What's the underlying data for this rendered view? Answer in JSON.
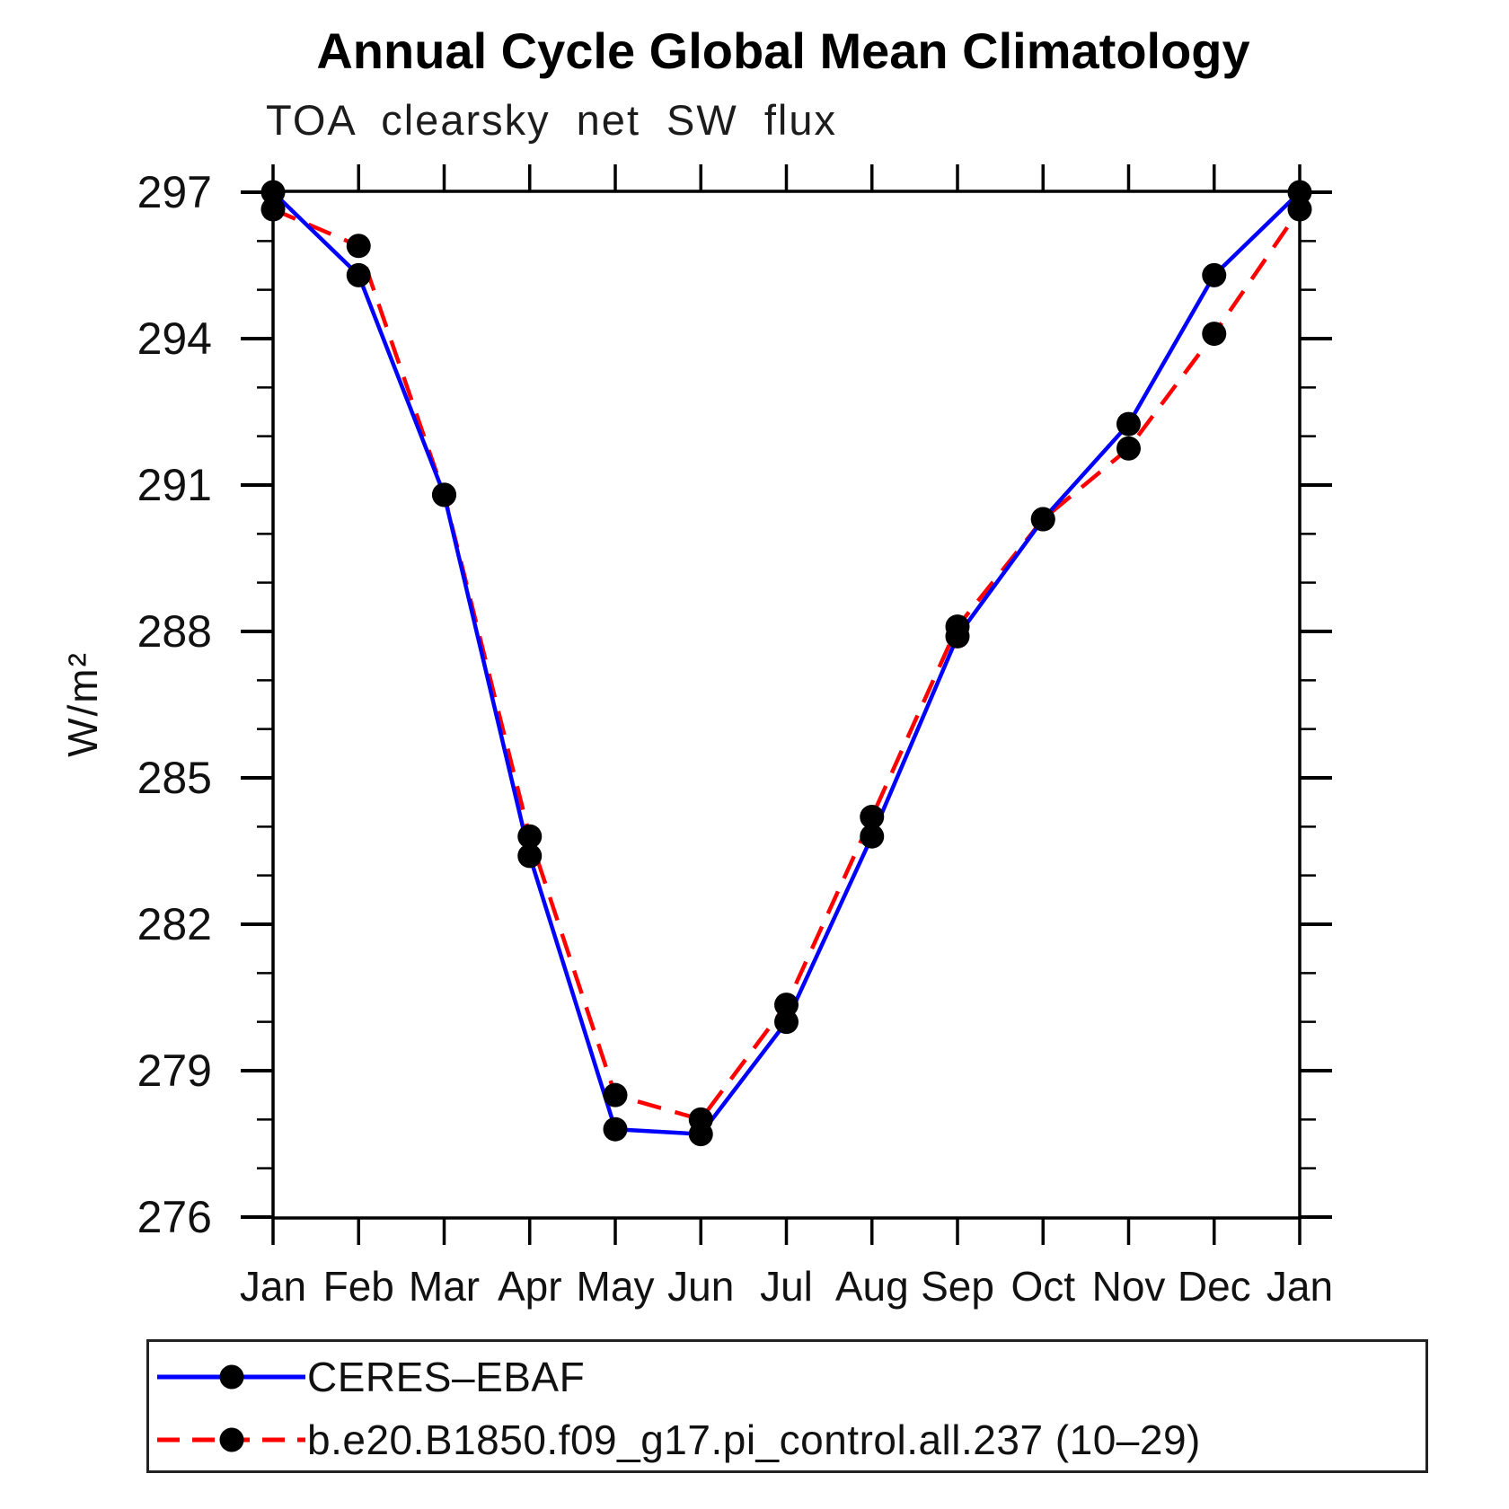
{
  "title": "Annual Cycle Global Mean Climatology",
  "subtitle": "TOA clearsky net SW flux",
  "chart_data": {
    "type": "line",
    "title": "Annual Cycle Global Mean Climatology",
    "subtitle": "TOA clearsky net SW flux",
    "ylabel": "W/m²",
    "xlabel": "",
    "x_categories": [
      "Jan",
      "Feb",
      "Mar",
      "Apr",
      "May",
      "Jun",
      "Jul",
      "Aug",
      "Sep",
      "Oct",
      "Nov",
      "Dec",
      "Jan"
    ],
    "ylim": [
      276,
      297
    ],
    "ytick_major": [
      276,
      279,
      282,
      285,
      288,
      291,
      294,
      297
    ],
    "ytick_minor_step": 1,
    "grid": false,
    "legend_position": "bottom-box",
    "axis_color": "#000000",
    "marker_color": "#000000",
    "series": [
      {
        "name": "CERES–EBAF",
        "color": "#0000ff",
        "style": "solid",
        "marker": "circle",
        "values": [
          297.0,
          295.3,
          290.8,
          283.4,
          277.8,
          277.7,
          280.0,
          283.8,
          287.9,
          290.3,
          292.25,
          295.3,
          297.0
        ]
      },
      {
        "name": "b.e20.B1850.f09_g17.pi_control.all.237 (10–29)",
        "color": "#ff0000",
        "style": "dashed",
        "marker": "circle",
        "values": [
          296.65,
          295.9,
          290.8,
          283.8,
          278.5,
          278.0,
          280.35,
          284.2,
          288.1,
          290.3,
          291.75,
          294.1,
          296.65
        ]
      }
    ]
  }
}
